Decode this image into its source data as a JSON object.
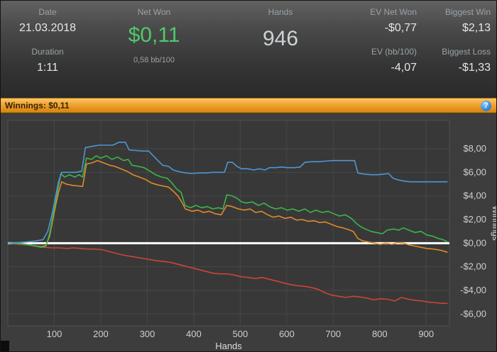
{
  "header": {
    "date_label": "Date",
    "date_value": "21.03.2018",
    "duration_label": "Duration",
    "duration_value": "1:11",
    "net_won_label": "Net Won",
    "net_won_value": "$0,11",
    "net_won_sub": "0,58 bb/100",
    "hands_label": "Hands",
    "hands_value": "946",
    "ev_net_won_label": "EV Net Won",
    "ev_net_won_value": "-$0,77",
    "biggest_win_label": "Biggest Win",
    "biggest_win_value": "$2,13",
    "ev_bb_label": "EV (bb/100)",
    "ev_bb_value": "-4,07",
    "biggest_loss_label": "Biggest Loss",
    "biggest_loss_value": "-$1,33"
  },
  "winnings_bar": {
    "label": "Winnings: $0,11",
    "help_glyph": "?"
  },
  "colors": {
    "accent_orange": "#f0a22f",
    "net_won_green": "#4fc96a",
    "zero_line": "#ffffff",
    "panel_bg": "#3d3d3d",
    "grid": "#474747"
  },
  "chart_data": {
    "type": "line",
    "title": "",
    "xlabel": "Hands",
    "ylabel": "Winnings",
    "xlim": [
      0,
      950
    ],
    "ylim": [
      -7.0,
      10.4
    ],
    "grid": true,
    "legend_position": "none",
    "zero_line": 0,
    "x_ticks": [
      {
        "v": 100,
        "label": "100"
      },
      {
        "v": 200,
        "label": "200"
      },
      {
        "v": 300,
        "label": "300"
      },
      {
        "v": 400,
        "label": "400"
      },
      {
        "v": 500,
        "label": "500"
      },
      {
        "v": 600,
        "label": "600"
      },
      {
        "v": 700,
        "label": "700"
      },
      {
        "v": 800,
        "label": "800"
      },
      {
        "v": 900,
        "label": "900"
      }
    ],
    "y_ticks": [
      {
        "v": 8,
        "label": "$8,00"
      },
      {
        "v": 6,
        "label": "$6,00"
      },
      {
        "v": 4,
        "label": "$4,00"
      },
      {
        "v": 2,
        "label": "$2,00"
      },
      {
        "v": 0,
        "label": "$0,00"
      },
      {
        "v": -2,
        "label": "-$2,00"
      },
      {
        "v": -4,
        "label": "-$4,00"
      },
      {
        "v": -6,
        "label": "-$6,00"
      }
    ],
    "series": [
      {
        "name": "red-line",
        "color": "#cc4438",
        "points": [
          [
            0,
            0
          ],
          [
            25,
            -0.1
          ],
          [
            45,
            -0.15
          ],
          [
            65,
            -0.3
          ],
          [
            80,
            -0.35
          ],
          [
            95,
            -0.4
          ],
          [
            112,
            -0.4
          ],
          [
            127,
            -0.45
          ],
          [
            142,
            -0.4
          ],
          [
            157,
            -0.45
          ],
          [
            172,
            -0.5
          ],
          [
            187,
            -0.5
          ],
          [
            202,
            -0.55
          ],
          [
            217,
            -0.7
          ],
          [
            232,
            -0.85
          ],
          [
            247,
            -1.0
          ],
          [
            262,
            -1.1
          ],
          [
            277,
            -1.2
          ],
          [
            292,
            -1.3
          ],
          [
            307,
            -1.4
          ],
          [
            322,
            -1.5
          ],
          [
            337,
            -1.55
          ],
          [
            352,
            -1.65
          ],
          [
            367,
            -1.8
          ],
          [
            382,
            -1.95
          ],
          [
            397,
            -2.1
          ],
          [
            412,
            -2.25
          ],
          [
            427,
            -2.4
          ],
          [
            442,
            -2.55
          ],
          [
            457,
            -2.6
          ],
          [
            472,
            -2.6
          ],
          [
            487,
            -2.7
          ],
          [
            502,
            -2.85
          ],
          [
            517,
            -2.9
          ],
          [
            532,
            -3.0
          ],
          [
            547,
            -2.9
          ],
          [
            562,
            -3.05
          ],
          [
            577,
            -3.2
          ],
          [
            592,
            -3.35
          ],
          [
            607,
            -3.5
          ],
          [
            622,
            -3.6
          ],
          [
            637,
            -3.65
          ],
          [
            652,
            -3.75
          ],
          [
            667,
            -3.9
          ],
          [
            682,
            -4.2
          ],
          [
            697,
            -4.4
          ],
          [
            712,
            -4.5
          ],
          [
            727,
            -4.6
          ],
          [
            742,
            -4.5
          ],
          [
            757,
            -4.55
          ],
          [
            772,
            -4.65
          ],
          [
            787,
            -4.8
          ],
          [
            802,
            -4.7
          ],
          [
            817,
            -4.75
          ],
          [
            832,
            -4.9
          ],
          [
            847,
            -4.6
          ],
          [
            862,
            -4.75
          ],
          [
            877,
            -4.85
          ],
          [
            892,
            -4.9
          ],
          [
            907,
            -5.0
          ],
          [
            922,
            -5.05
          ],
          [
            937,
            -5.1
          ],
          [
            946,
            -5.1
          ]
        ]
      },
      {
        "name": "orange-line",
        "color": "#e08a2a",
        "points": [
          [
            0,
            0
          ],
          [
            30,
            -0.05
          ],
          [
            55,
            -0.2
          ],
          [
            72,
            -0.3
          ],
          [
            82,
            -0.2
          ],
          [
            90,
            0.6
          ],
          [
            97,
            2.0
          ],
          [
            103,
            3.2
          ],
          [
            109,
            4.3
          ],
          [
            116,
            5.2
          ],
          [
            126,
            5.0
          ],
          [
            139,
            4.9
          ],
          [
            151,
            4.85
          ],
          [
            161,
            4.8
          ],
          [
            169,
            6.7
          ],
          [
            181,
            6.8
          ],
          [
            193,
            7.0
          ],
          [
            206,
            6.8
          ],
          [
            219,
            6.6
          ],
          [
            231,
            6.5
          ],
          [
            243,
            6.3
          ],
          [
            256,
            6.1
          ],
          [
            269,
            5.8
          ],
          [
            283,
            5.6
          ],
          [
            296,
            5.4
          ],
          [
            309,
            5.1
          ],
          [
            321,
            4.95
          ],
          [
            333,
            4.85
          ],
          [
            346,
            4.75
          ],
          [
            356,
            4.4
          ],
          [
            366,
            4.0
          ],
          [
            374,
            3.5
          ],
          [
            382,
            2.9
          ],
          [
            396,
            2.7
          ],
          [
            409,
            2.8
          ],
          [
            421,
            2.6
          ],
          [
            433,
            2.7
          ],
          [
            446,
            2.5
          ],
          [
            459,
            2.4
          ],
          [
            471,
            3.2
          ],
          [
            483,
            3.1
          ],
          [
            496,
            2.9
          ],
          [
            509,
            2.8
          ],
          [
            521,
            2.9
          ],
          [
            533,
            2.6
          ],
          [
            546,
            2.7
          ],
          [
            559,
            2.4
          ],
          [
            571,
            2.2
          ],
          [
            583,
            2.3
          ],
          [
            596,
            2.1
          ],
          [
            609,
            2.2
          ],
          [
            621,
            1.95
          ],
          [
            633,
            2.0
          ],
          [
            646,
            1.85
          ],
          [
            659,
            1.9
          ],
          [
            671,
            1.75
          ],
          [
            683,
            1.8
          ],
          [
            696,
            1.6
          ],
          [
            709,
            1.4
          ],
          [
            721,
            1.3
          ],
          [
            733,
            1.15
          ],
          [
            743,
            1.0
          ],
          [
            753,
            0.4
          ],
          [
            763,
            0.2
          ],
          [
            776,
            0.1
          ],
          [
            789,
            0.0
          ],
          [
            801,
            -0.1
          ],
          [
            813,
            0.0
          ],
          [
            826,
            -0.1
          ],
          [
            839,
            0.05
          ],
          [
            851,
            0.0
          ],
          [
            863,
            -0.15
          ],
          [
            876,
            -0.25
          ],
          [
            889,
            -0.35
          ],
          [
            901,
            -0.45
          ],
          [
            916,
            -0.5
          ],
          [
            931,
            -0.6
          ],
          [
            946,
            -0.77
          ]
        ]
      },
      {
        "name": "green-line",
        "color": "#3cb54a",
        "points": [
          [
            0,
            0
          ],
          [
            30,
            -0.05
          ],
          [
            55,
            -0.2
          ],
          [
            72,
            -0.35
          ],
          [
            82,
            -0.25
          ],
          [
            90,
            0.8
          ],
          [
            97,
            2.3
          ],
          [
            103,
            3.6
          ],
          [
            109,
            4.8
          ],
          [
            114,
            5.9
          ],
          [
            122,
            5.6
          ],
          [
            133,
            5.8
          ],
          [
            144,
            5.6
          ],
          [
            153,
            5.8
          ],
          [
            161,
            5.6
          ],
          [
            169,
            7.2
          ],
          [
            180,
            7.1
          ],
          [
            190,
            7.4
          ],
          [
            200,
            7.2
          ],
          [
            212,
            7.4
          ],
          [
            224,
            7.1
          ],
          [
            236,
            7.3
          ],
          [
            249,
            7.0
          ],
          [
            259,
            7.1
          ],
          [
            267,
            6.6
          ],
          [
            281,
            6.5
          ],
          [
            293,
            6.4
          ],
          [
            306,
            6.1
          ],
          [
            318,
            5.8
          ],
          [
            331,
            5.6
          ],
          [
            343,
            5.5
          ],
          [
            353,
            5.1
          ],
          [
            363,
            4.6
          ],
          [
            373,
            4.3
          ],
          [
            381,
            3.2
          ],
          [
            393,
            3.0
          ],
          [
            405,
            3.2
          ],
          [
            417,
            3.0
          ],
          [
            429,
            3.1
          ],
          [
            441,
            2.9
          ],
          [
            453,
            3.0
          ],
          [
            463,
            2.9
          ],
          [
            471,
            4.1
          ],
          [
            483,
            4.0
          ],
          [
            493,
            3.8
          ],
          [
            503,
            3.5
          ],
          [
            513,
            3.4
          ],
          [
            526,
            3.5
          ],
          [
            539,
            3.2
          ],
          [
            551,
            3.4
          ],
          [
            563,
            3.1
          ],
          [
            576,
            2.9
          ],
          [
            589,
            3.0
          ],
          [
            601,
            2.8
          ],
          [
            613,
            2.9
          ],
          [
            626,
            2.7
          ],
          [
            639,
            2.9
          ],
          [
            651,
            2.6
          ],
          [
            663,
            2.8
          ],
          [
            676,
            2.6
          ],
          [
            689,
            2.7
          ],
          [
            701,
            2.5
          ],
          [
            713,
            2.3
          ],
          [
            726,
            2.4
          ],
          [
            739,
            2.1
          ],
          [
            749,
            1.7
          ],
          [
            759,
            1.4
          ],
          [
            769,
            1.2
          ],
          [
            781,
            1.0
          ],
          [
            793,
            0.9
          ],
          [
            806,
            0.8
          ],
          [
            816,
            1.1
          ],
          [
            829,
            1.2
          ],
          [
            841,
            1.1
          ],
          [
            851,
            1.3
          ],
          [
            863,
            1.1
          ],
          [
            876,
            0.9
          ],
          [
            889,
            1.0
          ],
          [
            901,
            0.7
          ],
          [
            913,
            0.6
          ],
          [
            926,
            0.4
          ],
          [
            936,
            0.3
          ],
          [
            946,
            0.11
          ]
        ]
      },
      {
        "name": "blue-line",
        "color": "#4e96d2",
        "points": [
          [
            0,
            0
          ],
          [
            40,
            0.1
          ],
          [
            62,
            0.2
          ],
          [
            76,
            0.3
          ],
          [
            86,
            1.0
          ],
          [
            96,
            2.6
          ],
          [
            103,
            4.0
          ],
          [
            109,
            5.2
          ],
          [
            116,
            6.0
          ],
          [
            132,
            6.0
          ],
          [
            147,
            6.0
          ],
          [
            159,
            6.1
          ],
          [
            167,
            8.1
          ],
          [
            181,
            8.2
          ],
          [
            196,
            8.3
          ],
          [
            212,
            8.3
          ],
          [
            226,
            8.3
          ],
          [
            239,
            8.55
          ],
          [
            253,
            8.55
          ],
          [
            261,
            7.9
          ],
          [
            276,
            7.85
          ],
          [
            291,
            7.8
          ],
          [
            303,
            7.8
          ],
          [
            313,
            7.4
          ],
          [
            323,
            7.0
          ],
          [
            333,
            6.6
          ],
          [
            346,
            6.5
          ],
          [
            356,
            6.2
          ],
          [
            369,
            6.05
          ],
          [
            383,
            5.95
          ],
          [
            396,
            5.9
          ],
          [
            411,
            5.95
          ],
          [
            426,
            5.95
          ],
          [
            441,
            6.0
          ],
          [
            456,
            6.0
          ],
          [
            466,
            6.0
          ],
          [
            473,
            6.85
          ],
          [
            483,
            6.85
          ],
          [
            493,
            6.5
          ],
          [
            503,
            6.3
          ],
          [
            516,
            6.3
          ],
          [
            529,
            6.2
          ],
          [
            541,
            6.3
          ],
          [
            553,
            6.2
          ],
          [
            563,
            6.4
          ],
          [
            576,
            6.4
          ],
          [
            589,
            6.45
          ],
          [
            601,
            6.4
          ],
          [
            616,
            6.4
          ],
          [
            629,
            6.45
          ],
          [
            639,
            6.85
          ],
          [
            653,
            6.9
          ],
          [
            669,
            6.9
          ],
          [
            683,
            6.95
          ],
          [
            699,
            7.0
          ],
          [
            716,
            7.0
          ],
          [
            731,
            7.0
          ],
          [
            746,
            7.0
          ],
          [
            753,
            5.95
          ],
          [
            766,
            5.85
          ],
          [
            781,
            5.8
          ],
          [
            796,
            5.8
          ],
          [
            809,
            5.85
          ],
          [
            819,
            5.9
          ],
          [
            829,
            5.5
          ],
          [
            841,
            5.35
          ],
          [
            853,
            5.25
          ],
          [
            866,
            5.2
          ],
          [
            881,
            5.2
          ],
          [
            896,
            5.2
          ],
          [
            911,
            5.2
          ],
          [
            926,
            5.2
          ],
          [
            946,
            5.2
          ]
        ]
      }
    ]
  }
}
